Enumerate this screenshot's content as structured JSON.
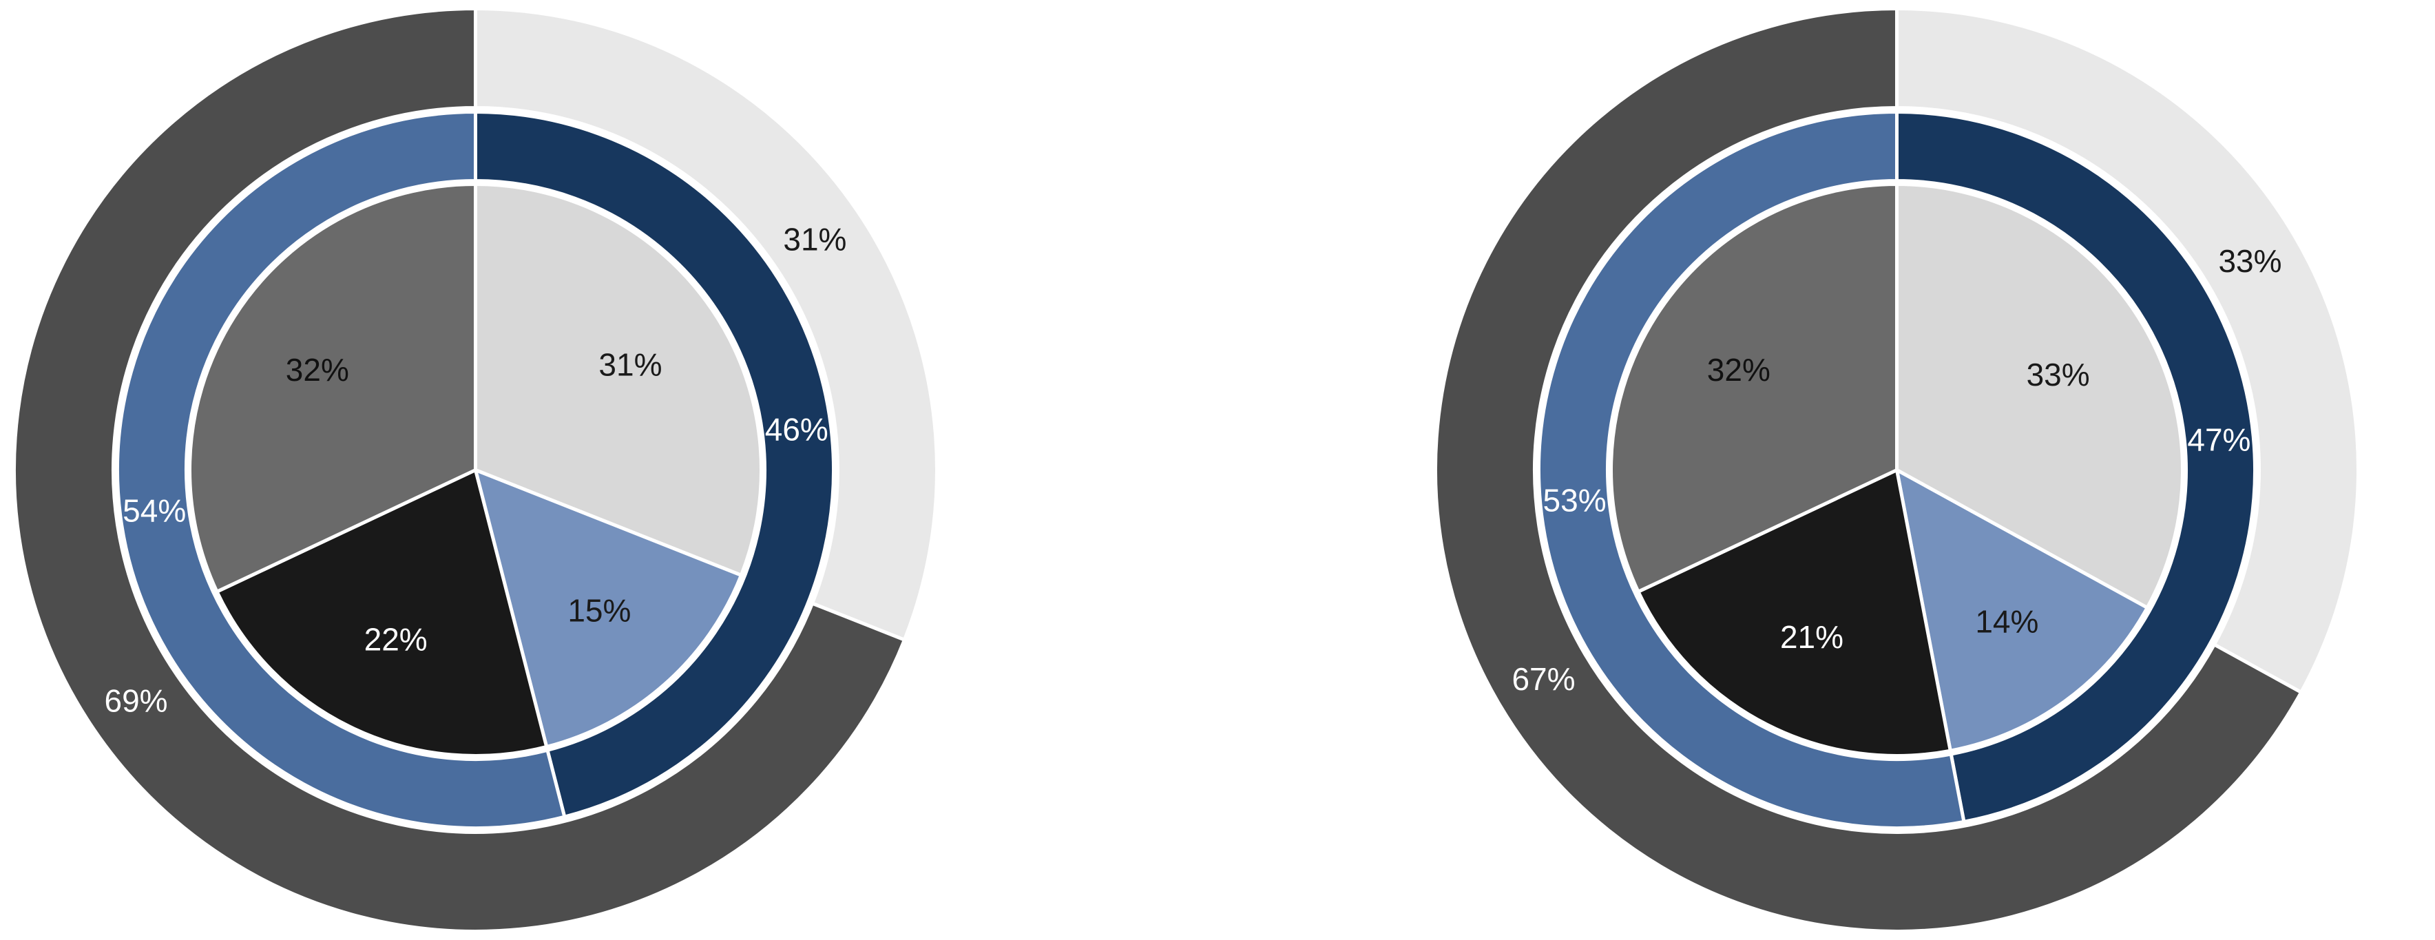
{
  "page": {
    "background_color": "#ffffff"
  },
  "chart_data": [
    {
      "type": "pie",
      "subtype": "nested-donut",
      "name": "left-nested-donut",
      "title": "",
      "legend": false,
      "start_angle_deg": 0,
      "direction": "clockwise",
      "rings": [
        {
          "name": "inner",
          "slices": [
            {
              "label": "31%",
              "value": 31,
              "color": "#d8d8d8",
              "label_color": "#1a1a1a"
            },
            {
              "label": "15%",
              "value": 15,
              "color": "#7591bd",
              "label_color": "#1a1a1a"
            },
            {
              "label": "22%",
              "value": 22,
              "color": "#191919",
              "label_color": "#ffffff"
            },
            {
              "label": "32%",
              "value": 32,
              "color": "#6a6a6a",
              "label_color": "#111111"
            }
          ]
        },
        {
          "name": "middle",
          "slices": [
            {
              "label": "46%",
              "value": 46,
              "color": "#17375e",
              "label_color": "#ffffff"
            },
            {
              "label": "54%",
              "value": 54,
              "color": "#4a6d9e",
              "label_color": "#ffffff"
            }
          ]
        },
        {
          "name": "outer",
          "slices": [
            {
              "label": "31%",
              "value": 31,
              "color": "#e8e8e8",
              "label_color": "#1a1a1a"
            },
            {
              "label": "69%",
              "value": 69,
              "color": "#4d4d4d",
              "label_color": "#ffffff"
            }
          ]
        }
      ]
    },
    {
      "type": "pie",
      "subtype": "nested-donut",
      "name": "right-nested-donut",
      "title": "",
      "legend": false,
      "start_angle_deg": 0,
      "direction": "clockwise",
      "rings": [
        {
          "name": "inner",
          "slices": [
            {
              "label": "33%",
              "value": 33,
              "color": "#d8d8d8",
              "label_color": "#1a1a1a"
            },
            {
              "label": "14%",
              "value": 14,
              "color": "#7591bd",
              "label_color": "#1a1a1a"
            },
            {
              "label": "21%",
              "value": 21,
              "color": "#191919",
              "label_color": "#ffffff"
            },
            {
              "label": "32%",
              "value": 32,
              "color": "#6a6a6a",
              "label_color": "#111111"
            }
          ]
        },
        {
          "name": "middle",
          "slices": [
            {
              "label": "47%",
              "value": 47,
              "color": "#17375e",
              "label_color": "#ffffff"
            },
            {
              "label": "53%",
              "value": 53,
              "color": "#4a6d9e",
              "label_color": "#ffffff"
            }
          ]
        },
        {
          "name": "outer",
          "slices": [
            {
              "label": "33%",
              "value": 33,
              "color": "#e8e8e8",
              "label_color": "#1a1a1a"
            },
            {
              "label": "67%",
              "value": 67,
              "color": "#4d4d4d",
              "label_color": "#ffffff"
            }
          ]
        }
      ]
    }
  ]
}
